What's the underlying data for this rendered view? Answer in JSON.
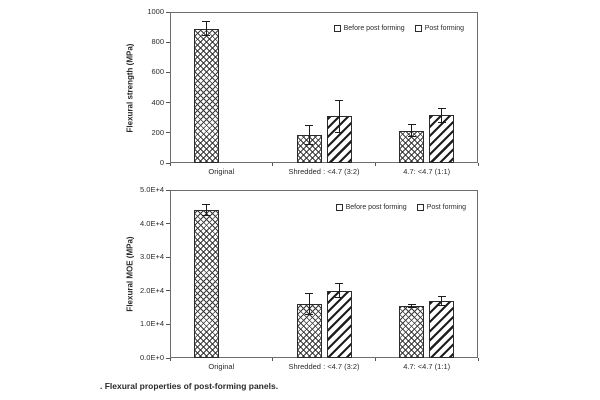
{
  "caption": ". Flexural properties of post-forming panels.",
  "colors": {
    "ink": "#2b2b2b",
    "frame": "#6e6e6e",
    "background": "#ffffff"
  },
  "chart_data": [
    {
      "type": "bar",
      "title": "",
      "xlabel": "",
      "ylabel": "Flexural strength (MPa)",
      "ylim": [
        0,
        1000
      ],
      "ytick_labels": [
        "0",
        "200",
        "400",
        "600",
        "800",
        "1000"
      ],
      "categories": [
        "Original",
        "Shredded : <4.7 (3:2)",
        "4.7: <4.7 (1:1)"
      ],
      "series": [
        {
          "name": "Before post forming",
          "pattern": "crosshatch",
          "values": [
            890,
            185,
            215
          ],
          "errors": [
            50,
            65,
            45
          ]
        },
        {
          "name": "Post forming",
          "pattern": "diagonal",
          "values": [
            null,
            310,
            315
          ],
          "errors": [
            null,
            110,
            50
          ]
        }
      ],
      "grid": false,
      "legend_position": "top-right",
      "error_bars": true
    },
    {
      "type": "bar",
      "title": "",
      "xlabel": "",
      "ylabel": "Flexural MOE (MPa)",
      "ylim": [
        0,
        50000
      ],
      "ytick_labels": [
        "0.0E+0",
        "1.0E+4",
        "2.0E+4",
        "3.0E+4",
        "4.0E+4",
        "5.0E+4"
      ],
      "categories": [
        "Original",
        "Shredded : <4.7 (3:2)",
        "4.7: <4.7 (1:1)"
      ],
      "series": [
        {
          "name": "Before post forming",
          "pattern": "crosshatch",
          "values": [
            44000,
            16000,
            15500
          ],
          "errors": [
            1800,
            3200,
            600
          ]
        },
        {
          "name": "Post forming",
          "pattern": "diagonal",
          "values": [
            null,
            20000,
            17000
          ],
          "errors": [
            null,
            2200,
            1600
          ]
        }
      ],
      "grid": false,
      "legend_position": "top-right",
      "error_bars": true
    }
  ]
}
